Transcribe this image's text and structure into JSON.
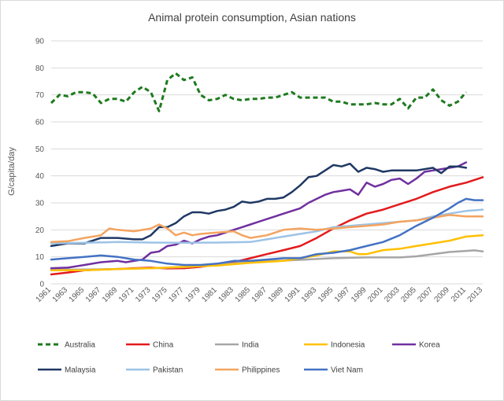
{
  "chart_data": {
    "type": "line",
    "title": "Animal protein consumption, Asian nations",
    "xlabel": "",
    "ylabel": "G/capita/day",
    "ylim": [
      0,
      90
    ],
    "yticks": [
      0,
      10,
      20,
      30,
      40,
      50,
      60,
      70,
      80,
      90
    ],
    "xlim": [
      1961,
      2013
    ],
    "xticks": [
      1961,
      1963,
      1965,
      1967,
      1969,
      1971,
      1973,
      1975,
      1977,
      1979,
      1981,
      1983,
      1985,
      1987,
      1989,
      1991,
      1993,
      1995,
      1997,
      1999,
      2001,
      2003,
      2005,
      2007,
      2009,
      2011,
      2013
    ],
    "grid": "horizontal",
    "legend_position": "bottom",
    "series": [
      {
        "name": "Australia",
        "color": "#1e7a1e",
        "dashed": true,
        "points": [
          [
            1961,
            67
          ],
          [
            1962,
            70
          ],
          [
            1963,
            69.5
          ],
          [
            1964,
            71
          ],
          [
            1965,
            71
          ],
          [
            1966,
            70.5
          ],
          [
            1967,
            67
          ],
          [
            1968,
            68.5
          ],
          [
            1969,
            68.5
          ],
          [
            1970,
            67.5
          ],
          [
            1971,
            71
          ],
          [
            1972,
            73
          ],
          [
            1973,
            71
          ],
          [
            1974,
            64
          ],
          [
            1975,
            75.5
          ],
          [
            1976,
            78
          ],
          [
            1977,
            75.5
          ],
          [
            1978,
            76.5
          ],
          [
            1979,
            70
          ],
          [
            1980,
            68
          ],
          [
            1981,
            68.5
          ],
          [
            1982,
            70
          ],
          [
            1983,
            68.5
          ],
          [
            1984,
            68
          ],
          [
            1985,
            68.5
          ],
          [
            1986,
            68.5
          ],
          [
            1987,
            69
          ],
          [
            1988,
            69
          ],
          [
            1989,
            70
          ],
          [
            1990,
            71
          ],
          [
            1991,
            69
          ],
          [
            1992,
            69
          ],
          [
            1993,
            69
          ],
          [
            1994,
            69
          ],
          [
            1995,
            67.5
          ],
          [
            1996,
            67.5
          ],
          [
            1997,
            66.5
          ],
          [
            1998,
            66.5
          ],
          [
            1999,
            66.5
          ],
          [
            2000,
            67
          ],
          [
            2001,
            66.5
          ],
          [
            2002,
            66.5
          ],
          [
            2003,
            68.5
          ],
          [
            2004,
            65
          ],
          [
            2005,
            69
          ],
          [
            2006,
            69
          ],
          [
            2007,
            72
          ],
          [
            2008,
            68
          ],
          [
            2009,
            66
          ],
          [
            2010,
            67.5
          ],
          [
            2011,
            71
          ]
        ]
      },
      {
        "name": "China",
        "color": "#e31a1c",
        "dashed": false,
        "points": [
          [
            1961,
            3.5
          ],
          [
            1963,
            4.2
          ],
          [
            1965,
            5
          ],
          [
            1967,
            5.3
          ],
          [
            1969,
            5.5
          ],
          [
            1971,
            5.8
          ],
          [
            1973,
            6
          ],
          [
            1975,
            5.7
          ],
          [
            1977,
            5.8
          ],
          [
            1979,
            6.3
          ],
          [
            1981,
            7.2
          ],
          [
            1983,
            8
          ],
          [
            1985,
            9.5
          ],
          [
            1987,
            11
          ],
          [
            1989,
            12.5
          ],
          [
            1991,
            14
          ],
          [
            1993,
            17
          ],
          [
            1995,
            20.5
          ],
          [
            1997,
            23.5
          ],
          [
            1999,
            26
          ],
          [
            2001,
            27.5
          ],
          [
            2003,
            29.5
          ],
          [
            2005,
            31.5
          ],
          [
            2007,
            34
          ],
          [
            2009,
            36
          ],
          [
            2011,
            37.5
          ],
          [
            2013,
            39.5
          ]
        ]
      },
      {
        "name": "India",
        "color": "#a6a6a6",
        "dashed": false,
        "points": [
          [
            1961,
            5.2
          ],
          [
            1965,
            5.3
          ],
          [
            1969,
            5.5
          ],
          [
            1973,
            5.8
          ],
          [
            1977,
            6.2
          ],
          [
            1981,
            7
          ],
          [
            1985,
            8.2
          ],
          [
            1989,
            8.6
          ],
          [
            1993,
            9.2
          ],
          [
            1995,
            9.5
          ],
          [
            1999,
            9.8
          ],
          [
            2003,
            9.8
          ],
          [
            2005,
            10.2
          ],
          [
            2007,
            11
          ],
          [
            2009,
            11.8
          ],
          [
            2011,
            12.2
          ],
          [
            2012,
            12.4
          ],
          [
            2013,
            12
          ]
        ]
      },
      {
        "name": "Indonesia",
        "color": "#ffc000",
        "dashed": false,
        "points": [
          [
            1961,
            5
          ],
          [
            1965,
            5
          ],
          [
            1969,
            5.5
          ],
          [
            1973,
            5.8
          ],
          [
            1977,
            6.3
          ],
          [
            1981,
            6.8
          ],
          [
            1985,
            7.8
          ],
          [
            1989,
            8.5
          ],
          [
            1991,
            9.5
          ],
          [
            1993,
            10.5
          ],
          [
            1995,
            12
          ],
          [
            1997,
            12
          ],
          [
            1998,
            11
          ],
          [
            1999,
            11
          ],
          [
            2001,
            12.5
          ],
          [
            2003,
            13
          ],
          [
            2005,
            14
          ],
          [
            2007,
            15
          ],
          [
            2009,
            16
          ],
          [
            2011,
            17.5
          ],
          [
            2013,
            18
          ]
        ]
      },
      {
        "name": "Korea",
        "color": "#7030a0",
        "dashed": false,
        "points": [
          [
            1961,
            5.8
          ],
          [
            1963,
            6
          ],
          [
            1964,
            6.5
          ],
          [
            1965,
            7
          ],
          [
            1967,
            8
          ],
          [
            1969,
            8.5
          ],
          [
            1970,
            8
          ],
          [
            1971,
            8.5
          ],
          [
            1972,
            9
          ],
          [
            1973,
            11.5
          ],
          [
            1974,
            12
          ],
          [
            1975,
            14
          ],
          [
            1976,
            14.5
          ],
          [
            1977,
            16
          ],
          [
            1978,
            15
          ],
          [
            1979,
            16.5
          ],
          [
            1980,
            17.5
          ],
          [
            1981,
            18
          ],
          [
            1982,
            19
          ],
          [
            1983,
            20
          ],
          [
            1984,
            21
          ],
          [
            1985,
            22
          ],
          [
            1986,
            23
          ],
          [
            1987,
            24
          ],
          [
            1988,
            25
          ],
          [
            1989,
            26
          ],
          [
            1990,
            27
          ],
          [
            1991,
            28
          ],
          [
            1992,
            30
          ],
          [
            1993,
            31.5
          ],
          [
            1994,
            33
          ],
          [
            1995,
            34
          ],
          [
            1996,
            34.5
          ],
          [
            1997,
            35
          ],
          [
            1998,
            33
          ],
          [
            1999,
            37.5
          ],
          [
            2000,
            36
          ],
          [
            2001,
            37
          ],
          [
            2002,
            38.5
          ],
          [
            2003,
            39
          ],
          [
            2004,
            37
          ],
          [
            2005,
            39
          ],
          [
            2006,
            41.5
          ],
          [
            2007,
            42
          ],
          [
            2008,
            42.5
          ],
          [
            2009,
            43
          ],
          [
            2010,
            43.5
          ],
          [
            2011,
            45
          ]
        ]
      },
      {
        "name": "Malaysia",
        "color": "#1f3864",
        "dashed": false,
        "points": [
          [
            1961,
            14
          ],
          [
            1963,
            15
          ],
          [
            1965,
            15
          ],
          [
            1967,
            17
          ],
          [
            1969,
            17
          ],
          [
            1971,
            16.5
          ],
          [
            1972,
            16.5
          ],
          [
            1973,
            18
          ],
          [
            1974,
            21
          ],
          [
            1975,
            21
          ],
          [
            1976,
            22.5
          ],
          [
            1977,
            25
          ],
          [
            1978,
            26.5
          ],
          [
            1979,
            26.5
          ],
          [
            1980,
            26
          ],
          [
            1981,
            27
          ],
          [
            1982,
            27.5
          ],
          [
            1983,
            28.5
          ],
          [
            1984,
            30.5
          ],
          [
            1985,
            30
          ],
          [
            1986,
            30.5
          ],
          [
            1987,
            31.5
          ],
          [
            1988,
            31.5
          ],
          [
            1989,
            32
          ],
          [
            1990,
            34
          ],
          [
            1991,
            36.5
          ],
          [
            1992,
            39.5
          ],
          [
            1993,
            40
          ],
          [
            1994,
            42
          ],
          [
            1995,
            44
          ],
          [
            1996,
            43.5
          ],
          [
            1997,
            44.5
          ],
          [
            1998,
            41.5
          ],
          [
            1999,
            43
          ],
          [
            2000,
            42.5
          ],
          [
            2001,
            41.5
          ],
          [
            2002,
            42
          ],
          [
            2003,
            42
          ],
          [
            2004,
            42
          ],
          [
            2005,
            42
          ],
          [
            2006,
            42.5
          ],
          [
            2007,
            43
          ],
          [
            2008,
            41
          ],
          [
            2009,
            43.5
          ],
          [
            2010,
            43.5
          ],
          [
            2011,
            43
          ]
        ]
      },
      {
        "name": "Pakistan",
        "color": "#9dc3e6",
        "dashed": false,
        "points": [
          [
            1961,
            15
          ],
          [
            1965,
            15.2
          ],
          [
            1969,
            15.5
          ],
          [
            1973,
            15.3
          ],
          [
            1977,
            15.2
          ],
          [
            1981,
            15.3
          ],
          [
            1985,
            15.5
          ],
          [
            1987,
            16.5
          ],
          [
            1989,
            17.5
          ],
          [
            1991,
            18.5
          ],
          [
            1993,
            19.5
          ],
          [
            1995,
            21
          ],
          [
            1997,
            21.5
          ],
          [
            1999,
            22
          ],
          [
            2001,
            22.5
          ],
          [
            2003,
            23
          ],
          [
            2005,
            23.5
          ],
          [
            2007,
            25
          ],
          [
            2009,
            26
          ],
          [
            2011,
            27
          ],
          [
            2013,
            27.5
          ]
        ]
      },
      {
        "name": "Philippines",
        "color": "#f4a460",
        "dashed": false,
        "points": [
          [
            1961,
            15.5
          ],
          [
            1963,
            15.8
          ],
          [
            1965,
            17
          ],
          [
            1967,
            18
          ],
          [
            1968,
            20.5
          ],
          [
            1969,
            20
          ],
          [
            1971,
            19.5
          ],
          [
            1973,
            20.5
          ],
          [
            1974,
            22
          ],
          [
            1975,
            20.5
          ],
          [
            1976,
            18
          ],
          [
            1977,
            19
          ],
          [
            1978,
            18
          ],
          [
            1979,
            18.5
          ],
          [
            1981,
            19
          ],
          [
            1983,
            19.5
          ],
          [
            1984,
            18
          ],
          [
            1985,
            17
          ],
          [
            1987,
            18
          ],
          [
            1989,
            20
          ],
          [
            1991,
            20.5
          ],
          [
            1993,
            20
          ],
          [
            1995,
            20.5
          ],
          [
            1997,
            21
          ],
          [
            1999,
            21.5
          ],
          [
            2001,
            22
          ],
          [
            2003,
            23
          ],
          [
            2005,
            23.5
          ],
          [
            2007,
            24.5
          ],
          [
            2009,
            25.5
          ],
          [
            2011,
            25
          ],
          [
            2013,
            25
          ]
        ]
      },
      {
        "name": "Viet Nam",
        "color": "#4472c4",
        "dashed": false,
        "points": [
          [
            1961,
            9
          ],
          [
            1963,
            9.5
          ],
          [
            1965,
            10
          ],
          [
            1967,
            10.5
          ],
          [
            1969,
            10
          ],
          [
            1971,
            9
          ],
          [
            1973,
            8.5
          ],
          [
            1975,
            7.5
          ],
          [
            1977,
            7
          ],
          [
            1979,
            7
          ],
          [
            1981,
            7.5
          ],
          [
            1983,
            8.5
          ],
          [
            1985,
            8.5
          ],
          [
            1987,
            9
          ],
          [
            1989,
            9.5
          ],
          [
            1991,
            9.5
          ],
          [
            1993,
            11
          ],
          [
            1995,
            11.5
          ],
          [
            1997,
            12.5
          ],
          [
            1999,
            14
          ],
          [
            2001,
            15.5
          ],
          [
            2003,
            18
          ],
          [
            2005,
            21.5
          ],
          [
            2007,
            24.5
          ],
          [
            2009,
            28
          ],
          [
            2010,
            30
          ],
          [
            2011,
            31.5
          ],
          [
            2012,
            31
          ],
          [
            2013,
            31
          ]
        ]
      }
    ]
  }
}
